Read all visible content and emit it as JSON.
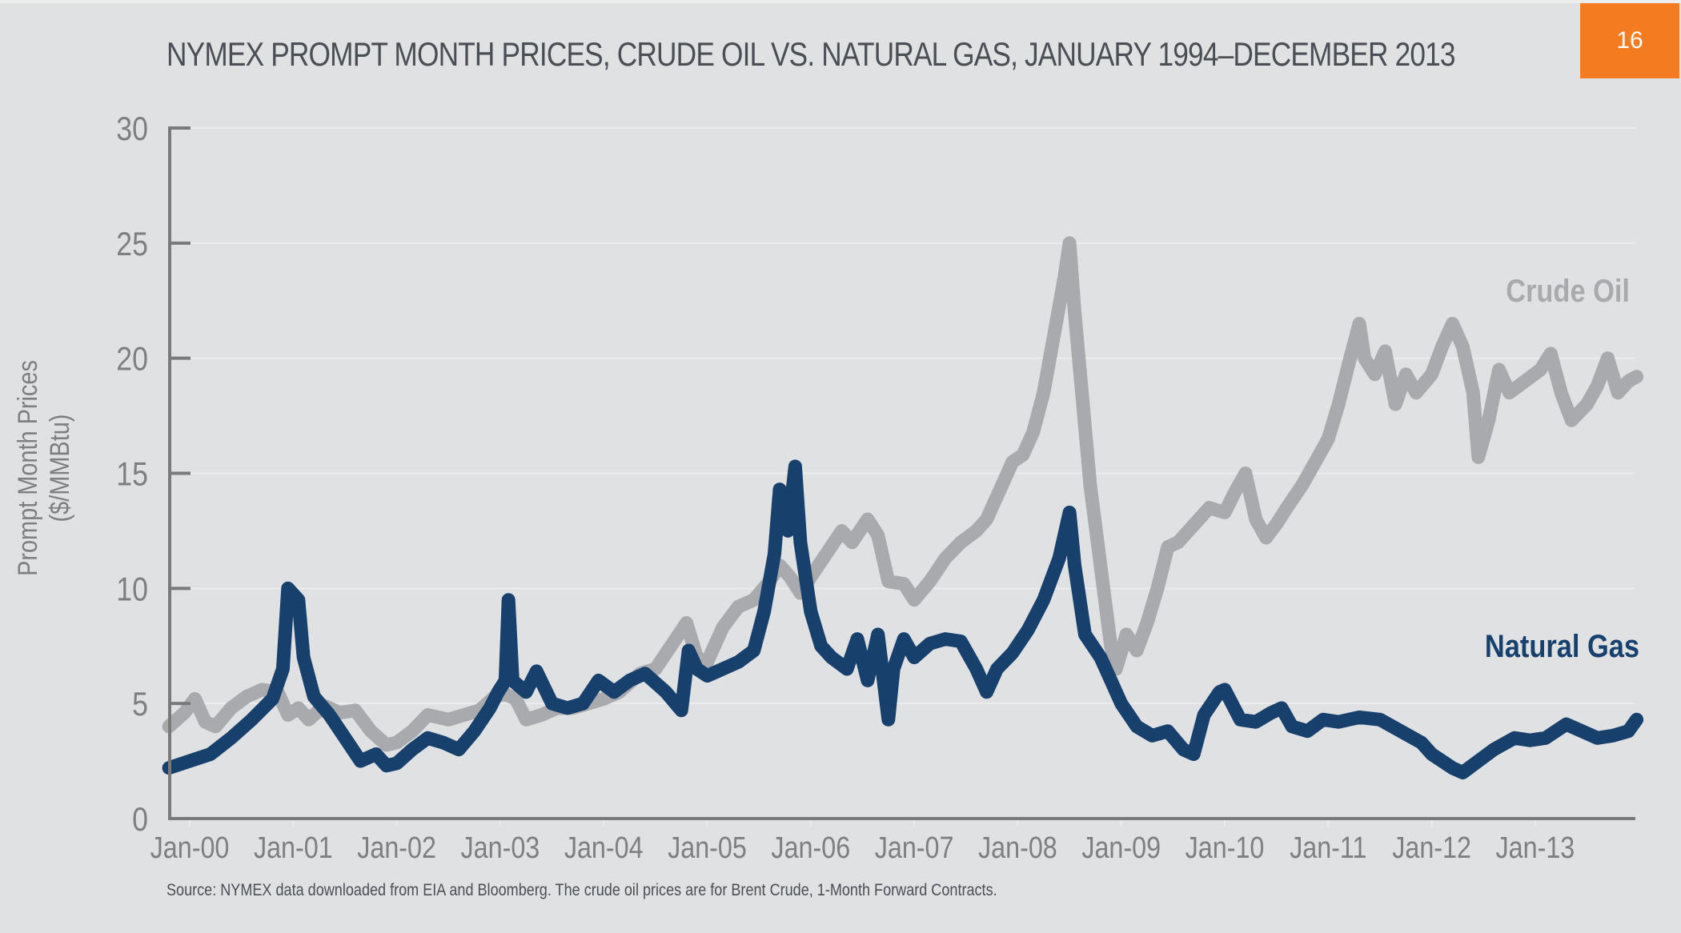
{
  "page": {
    "title": "NYMEX PROMPT MONTH PRICES, CRUDE OIL VS. NATURAL GAS, JANUARY 1994–DECEMBER 2013",
    "page_number": "16",
    "source_note": "Source: NYMEX data downloaded from EIA and Bloomberg. The crude oil prices are for Brent Crude, 1-Month Forward Contracts.",
    "colors": {
      "background": "#e0e1e3",
      "badge": "#f47b20",
      "crude_oil": "#a9aaae",
      "natural_gas": "#17406d",
      "axis": "#7a7a7a"
    }
  },
  "chart_data": {
    "type": "line",
    "title": "NYMEX PROMPT MONTH PRICES, CRUDE OIL VS. NATURAL GAS, JANUARY 1994–DECEMBER 2013",
    "xlabel": "",
    "ylabel": [
      "Prompt Month Prices",
      "($/MMBtu)"
    ],
    "ylim": [
      0,
      30
    ],
    "xlim": [
      1999.8,
      2014.0
    ],
    "yticks": [
      0,
      5,
      10,
      15,
      20,
      25,
      30
    ],
    "xticks": [
      {
        "x": 2000,
        "label": "Jan-00"
      },
      {
        "x": 2001,
        "label": "Jan-01"
      },
      {
        "x": 2002,
        "label": "Jan-02"
      },
      {
        "x": 2003,
        "label": "Jan-03"
      },
      {
        "x": 2004,
        "label": "Jan-04"
      },
      {
        "x": 2005,
        "label": "Jan-05"
      },
      {
        "x": 2006,
        "label": "Jan-06"
      },
      {
        "x": 2007,
        "label": "Jan-07"
      },
      {
        "x": 2008,
        "label": "Jan-08"
      },
      {
        "x": 2009,
        "label": "Jan-09"
      },
      {
        "x": 2010,
        "label": "Jan-10"
      },
      {
        "x": 2011,
        "label": "Jan-11"
      },
      {
        "x": 2012,
        "label": "Jan-12"
      },
      {
        "x": 2013,
        "label": "Jan-13"
      }
    ],
    "grid": true,
    "legend": "inline-right",
    "series": [
      {
        "name": "Crude Oil",
        "color": "#a9aaae",
        "x": [
          1999.8,
          1999.95,
          2000.05,
          2000.15,
          2000.25,
          2000.4,
          2000.55,
          2000.7,
          2000.85,
          2000.95,
          2001.05,
          2001.15,
          2001.3,
          2001.45,
          2001.6,
          2001.75,
          2001.9,
          2002.0,
          2002.15,
          2002.3,
          2002.5,
          2002.65,
          2002.8,
          2002.95,
          2003.05,
          2003.15,
          2003.25,
          2003.4,
          2003.55,
          2003.7,
          2003.85,
          2004.0,
          2004.15,
          2004.35,
          2004.5,
          2004.65,
          2004.8,
          2004.9,
          2005.0,
          2005.15,
          2005.3,
          2005.45,
          2005.6,
          2005.7,
          2005.8,
          2005.9,
          2006.0,
          2006.15,
          2006.3,
          2006.4,
          2006.55,
          2006.65,
          2006.75,
          2006.9,
          2007.0,
          2007.15,
          2007.3,
          2007.45,
          2007.6,
          2007.7,
          2007.85,
          2007.95,
          2008.05,
          2008.15,
          2008.25,
          2008.35,
          2008.45,
          2008.5,
          2008.55,
          2008.62,
          2008.7,
          2008.8,
          2008.9,
          2008.95,
          2009.05,
          2009.15,
          2009.25,
          2009.35,
          2009.45,
          2009.55,
          2009.65,
          2009.75,
          2009.85,
          2010.0,
          2010.1,
          2010.2,
          2010.3,
          2010.4,
          2010.5,
          2010.6,
          2010.75,
          2010.9,
          2011.0,
          2011.1,
          2011.2,
          2011.3,
          2011.35,
          2011.45,
          2011.55,
          2011.65,
          2011.75,
          2011.85,
          2012.0,
          2012.1,
          2012.2,
          2012.3,
          2012.4,
          2012.45,
          2012.55,
          2012.65,
          2012.75,
          2012.9,
          2013.05,
          2013.15,
          2013.25,
          2013.35,
          2013.5,
          2013.6,
          2013.7,
          2013.8,
          2013.9,
          2013.98
        ],
        "values": [
          4.0,
          4.6,
          5.2,
          4.2,
          4.0,
          4.8,
          5.3,
          5.6,
          5.5,
          4.5,
          4.8,
          4.3,
          4.9,
          4.6,
          4.7,
          3.8,
          3.2,
          3.3,
          3.8,
          4.5,
          4.3,
          4.5,
          4.7,
          5.3,
          5.4,
          5.2,
          4.3,
          4.5,
          4.8,
          4.8,
          5.0,
          5.2,
          5.5,
          6.3,
          6.5,
          7.5,
          8.5,
          7.0,
          6.8,
          8.3,
          9.2,
          9.5,
          10.3,
          11.0,
          10.5,
          9.8,
          10.5,
          11.5,
          12.5,
          12.0,
          13.0,
          12.3,
          10.3,
          10.2,
          9.5,
          10.3,
          11.3,
          12.0,
          12.5,
          13.0,
          14.5,
          15.5,
          15.8,
          16.8,
          18.5,
          21.0,
          23.5,
          25.0,
          22.0,
          18.5,
          14.5,
          11.0,
          7.5,
          6.5,
          8.0,
          7.3,
          8.5,
          10.0,
          11.8,
          12.0,
          12.5,
          13.0,
          13.5,
          13.3,
          14.2,
          15.0,
          13.0,
          12.2,
          12.8,
          13.5,
          14.5,
          15.7,
          16.5,
          18.0,
          19.8,
          21.5,
          20.0,
          19.3,
          20.3,
          18.0,
          19.3,
          18.5,
          19.3,
          20.5,
          21.5,
          20.5,
          18.5,
          15.7,
          17.3,
          19.5,
          18.5,
          19.0,
          19.5,
          20.2,
          18.5,
          17.3,
          18.0,
          18.8,
          20.0,
          18.5,
          19.0,
          19.2
        ]
      },
      {
        "name": "Natural Gas",
        "color": "#17406d",
        "x": [
          1999.8,
          2000.0,
          2000.2,
          2000.4,
          2000.6,
          2000.8,
          2000.9,
          2000.95,
          2001.05,
          2001.1,
          2001.2,
          2001.35,
          2001.5,
          2001.65,
          2001.8,
          2001.9,
          2002.0,
          2002.15,
          2002.3,
          2002.45,
          2002.6,
          2002.75,
          2002.9,
          2002.98,
          2003.05,
          2003.08,
          2003.12,
          2003.25,
          2003.35,
          2003.5,
          2003.65,
          2003.8,
          2003.95,
          2004.1,
          2004.25,
          2004.4,
          2004.6,
          2004.75,
          2004.82,
          2004.9,
          2005.0,
          2005.15,
          2005.3,
          2005.45,
          2005.55,
          2005.65,
          2005.7,
          2005.78,
          2005.85,
          2005.9,
          2006.0,
          2006.1,
          2006.2,
          2006.35,
          2006.45,
          2006.55,
          2006.65,
          2006.75,
          2006.8,
          2006.9,
          2007.0,
          2007.15,
          2007.3,
          2007.45,
          2007.6,
          2007.7,
          2007.8,
          2007.95,
          2008.1,
          2008.25,
          2008.4,
          2008.5,
          2008.55,
          2008.65,
          2008.8,
          2008.9,
          2009.0,
          2009.15,
          2009.3,
          2009.45,
          2009.6,
          2009.7,
          2009.8,
          2009.95,
          2010.0,
          2010.15,
          2010.3,
          2010.45,
          2010.55,
          2010.65,
          2010.8,
          2010.95,
          2011.1,
          2011.3,
          2011.5,
          2011.7,
          2011.9,
          2012.0,
          2012.2,
          2012.3,
          2012.45,
          2012.6,
          2012.8,
          2012.95,
          2013.1,
          2013.3,
          2013.45,
          2013.6,
          2013.75,
          2013.9,
          2013.98
        ],
        "values": [
          2.2,
          2.5,
          2.8,
          3.5,
          4.3,
          5.2,
          6.5,
          10.0,
          9.5,
          7.0,
          5.3,
          4.5,
          3.5,
          2.5,
          2.8,
          2.3,
          2.4,
          3.0,
          3.5,
          3.3,
          3.0,
          3.8,
          4.8,
          5.5,
          6.0,
          9.5,
          6.0,
          5.5,
          6.4,
          5.0,
          4.8,
          5.0,
          6.0,
          5.5,
          6.0,
          6.3,
          5.5,
          4.7,
          7.3,
          6.5,
          6.2,
          6.5,
          6.8,
          7.3,
          9.0,
          11.5,
          14.3,
          12.5,
          15.3,
          12.0,
          9.0,
          7.5,
          7.0,
          6.5,
          7.8,
          6.0,
          8.0,
          4.3,
          6.5,
          7.8,
          7.0,
          7.6,
          7.8,
          7.7,
          6.5,
          5.5,
          6.5,
          7.2,
          8.2,
          9.5,
          11.3,
          13.3,
          11.0,
          8.0,
          7.0,
          6.0,
          5.0,
          4.0,
          3.6,
          3.8,
          3.0,
          2.8,
          4.5,
          5.5,
          5.6,
          4.3,
          4.2,
          4.6,
          4.8,
          4.0,
          3.8,
          4.3,
          4.2,
          4.4,
          4.3,
          3.8,
          3.3,
          2.8,
          2.2,
          2.0,
          2.5,
          3.0,
          3.5,
          3.4,
          3.5,
          4.1,
          3.8,
          3.5,
          3.6,
          3.8,
          4.3
        ]
      }
    ],
    "series_labels": [
      {
        "series": "Crude Oil",
        "text": "Crude Oil"
      },
      {
        "series": "Natural Gas",
        "text": "Natural Gas"
      }
    ]
  }
}
